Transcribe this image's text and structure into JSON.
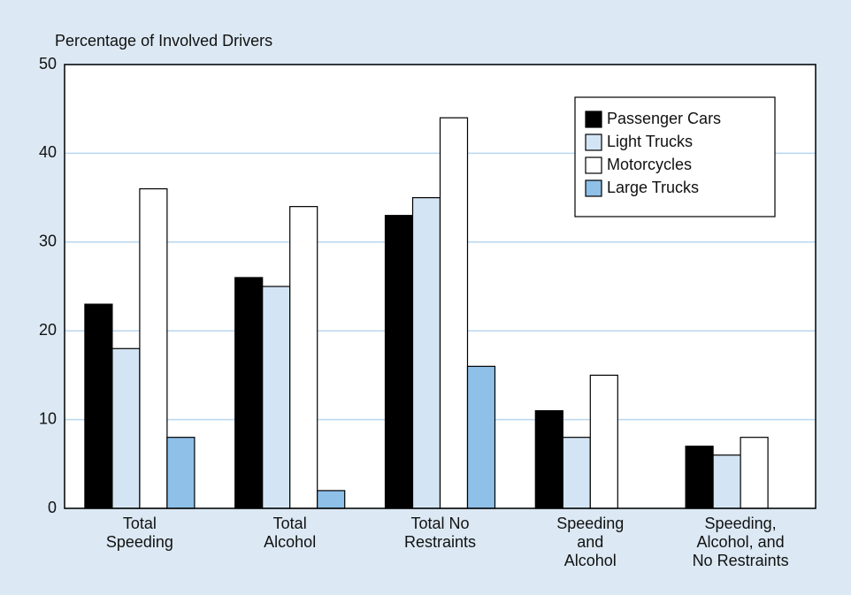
{
  "chart_data": {
    "type": "bar",
    "y_axis_label": "Percentage of Involved Drivers",
    "categories": [
      "Total\nSpeeding",
      "Total\nAlcohol",
      "Total No\nRestraints",
      "Speeding\nand\nAlcohol",
      "Speeding,\nAlcohol, and\nNo Restraints"
    ],
    "series": [
      {
        "name": "Passenger Cars",
        "color": "#000000",
        "values": [
          23,
          26,
          33,
          11,
          7
        ]
      },
      {
        "name": "Light Trucks",
        "color": "#d3e5f5",
        "values": [
          18,
          25,
          35,
          8,
          6
        ]
      },
      {
        "name": "Motorcycles",
        "color": "#ffffff",
        "values": [
          36,
          34,
          44,
          15,
          8
        ]
      },
      {
        "name": "Large Trucks",
        "color": "#8ec0e8",
        "values": [
          8,
          2,
          16,
          null,
          null
        ]
      }
    ],
    "ylim": [
      0,
      50
    ],
    "yticks": [
      0,
      10,
      20,
      30,
      40,
      50
    ],
    "grid": true,
    "legend": "upper right"
  }
}
